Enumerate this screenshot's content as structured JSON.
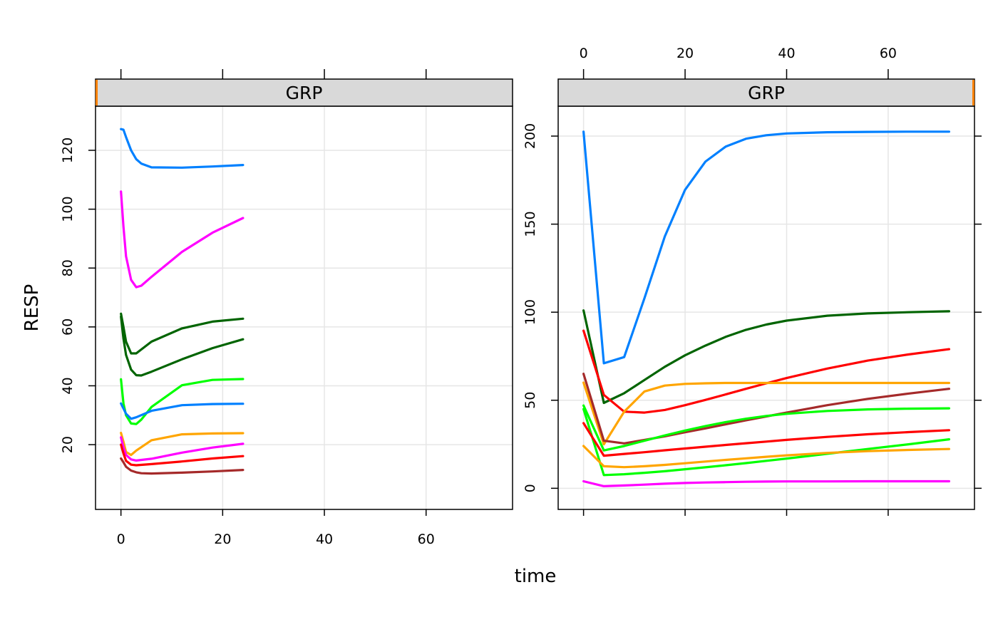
{
  "chart_data": {
    "type": "line",
    "xlabel": "time",
    "ylabel": "RESP",
    "xlim": [
      -5,
      77
    ],
    "grid": true,
    "x_ticks": [
      0,
      20,
      40,
      60
    ],
    "panels": [
      {
        "strip_label": "GRP",
        "strip_marker": "left",
        "ylim": [
          -2,
          135
        ],
        "y_ticks": [
          20,
          40,
          60,
          80,
          100,
          120
        ],
        "series": [
          {
            "color": "#0080ff",
            "x": [
              0,
              0.5,
              1,
              2,
              3,
              4,
              6,
              12,
              18,
              24
            ],
            "y": [
              127.2,
              127,
              124.5,
              120,
              117,
              115.5,
              114.2,
              114.1,
              114.5,
              115
            ]
          },
          {
            "color": "#ff00ff",
            "x": [
              0,
              0.5,
              1,
              2,
              3,
              4,
              6,
              12,
              18,
              24
            ],
            "y": [
              106,
              94,
              84,
              76,
              73.5,
              74,
              77,
              85.5,
              92,
              97
            ]
          },
          {
            "color": "#006400",
            "x": [
              0,
              0.5,
              1,
              2,
              3,
              6,
              12,
              18,
              24
            ],
            "y": [
              64.5,
              60,
              55,
              51,
              51,
              55,
              59.5,
              61.8,
              62.8
            ]
          },
          {
            "color": "#006400",
            "x": [
              0,
              0.5,
              1,
              2,
              3,
              4,
              6,
              12,
              18,
              24
            ],
            "y": [
              63.5,
              56,
              50.5,
              45.5,
              43.6,
              43.5,
              44.8,
              49,
              52.8,
              55.8
            ]
          },
          {
            "color": "#00ff00",
            "x": [
              0,
              0.5,
              1,
              2,
              3,
              4,
              6,
              12,
              18,
              24
            ],
            "y": [
              42.2,
              34,
              30,
              27.2,
              27,
              28.5,
              32.8,
              40.2,
              42,
              42.3
            ]
          },
          {
            "color": "#0080ff",
            "x": [
              0,
              1,
              2,
              3,
              6,
              12,
              18,
              24
            ],
            "y": [
              34,
              30.5,
              28.8,
              29.3,
              31.5,
              33.4,
              33.8,
              33.9
            ]
          },
          {
            "color": "#ffa500",
            "x": [
              0,
              0.5,
              1,
              2,
              3,
              6,
              12,
              18,
              24
            ],
            "y": [
              24,
              21,
              17.5,
              16.5,
              18,
              21.5,
              23.5,
              23.8,
              23.9
            ]
          },
          {
            "color": "#ff00ff",
            "x": [
              0,
              0.5,
              1,
              2,
              3,
              6,
              12,
              18,
              24
            ],
            "y": [
              22.5,
              19,
              16.5,
              15,
              14.6,
              15.2,
              17.3,
              19,
              20.3
            ]
          },
          {
            "color": "#ff0000",
            "x": [
              0,
              0.5,
              1,
              2,
              3,
              6,
              12,
              18,
              24
            ],
            "y": [
              20,
              17,
              14.5,
              13.2,
              13,
              13.4,
              14.3,
              15.3,
              16.1
            ]
          },
          {
            "color": "#a52a2a",
            "x": [
              0,
              0.5,
              1,
              2,
              3,
              4,
              6,
              12,
              18,
              24
            ],
            "y": [
              15.3,
              14,
              12.5,
              11.2,
              10.6,
              10.3,
              10.2,
              10.5,
              10.9,
              11.4
            ]
          }
        ]
      },
      {
        "strip_label": "GRP",
        "strip_marker": "right",
        "ylim": [
          -12,
          217
        ],
        "y_ticks": [
          0,
          50,
          100,
          150,
          200
        ],
        "series": [
          {
            "color": "#0080ff",
            "x": [
              0,
              4,
              8,
              12,
              16,
              20,
              24,
              28,
              32,
              36,
              40,
              48,
              56,
              64,
              72
            ],
            "y": [
              202.5,
              71,
              74.5,
              108,
              143,
              169.5,
              185.5,
              194,
              198.5,
              200.5,
              201.5,
              202.2,
              202.4,
              202.5,
              202.5
            ]
          },
          {
            "color": "#006400",
            "x": [
              0,
              4,
              8,
              12,
              16,
              20,
              24,
              28,
              32,
              36,
              40,
              48,
              56,
              64,
              72
            ],
            "y": [
              101,
              48.5,
              54,
              61.5,
              69,
              75.5,
              81,
              86,
              90,
              93,
              95.2,
              98,
              99.3,
              100,
              100.5
            ]
          },
          {
            "color": "#ff0000",
            "x": [
              0,
              4,
              8,
              12,
              16,
              20,
              24,
              28,
              32,
              36,
              40,
              48,
              56,
              64,
              72
            ],
            "y": [
              89.5,
              53,
              43.5,
              43,
              44.5,
              47.2,
              50.2,
              53.3,
              56.5,
              59.6,
              62.6,
              68,
              72.5,
              76,
              79
            ]
          },
          {
            "color": "#ffa500",
            "x": [
              0,
              4,
              8,
              12,
              16,
              20,
              24,
              28,
              32,
              36,
              40,
              48,
              56,
              64,
              72
            ],
            "y": [
              60,
              25,
              43.5,
              55,
              58.3,
              59.3,
              59.6,
              59.8,
              59.8,
              59.8,
              59.8,
              59.8,
              59.8,
              59.8,
              59.8
            ]
          },
          {
            "color": "#a52a2a",
            "x": [
              0,
              4,
              8,
              12,
              16,
              20,
              24,
              28,
              32,
              36,
              40,
              48,
              56,
              64,
              72
            ],
            "y": [
              65,
              27,
              25.5,
              27.5,
              29.5,
              31.8,
              34,
              36.3,
              38.6,
              40.8,
              43,
              47.2,
              50.8,
              53.8,
              56.5
            ]
          },
          {
            "color": "#00ff00",
            "x": [
              0,
              4,
              8,
              12,
              16,
              20,
              24,
              28,
              32,
              36,
              40,
              48,
              56,
              64,
              72
            ],
            "y": [
              47,
              21.5,
              24,
              27,
              30,
              32.8,
              35.3,
              37.6,
              39.5,
              41.1,
              42.3,
              43.9,
              44.8,
              45.2,
              45.4
            ]
          },
          {
            "color": "#00ff00",
            "x": [
              0,
              4,
              8,
              12,
              16,
              20,
              24,
              28,
              32,
              36,
              40,
              48,
              56,
              64,
              72
            ],
            "y": [
              45,
              7.5,
              8,
              8.8,
              9.7,
              10.8,
              11.9,
              13.1,
              14.3,
              15.6,
              16.9,
              19.6,
              22.3,
              25,
              27.8
            ]
          },
          {
            "color": "#ff0000",
            "x": [
              0,
              4,
              8,
              12,
              16,
              20,
              24,
              28,
              32,
              36,
              40,
              48,
              56,
              64,
              72
            ],
            "y": [
              37,
              18.5,
              19.5,
              20.5,
              21.6,
              22.6,
              23.6,
              24.6,
              25.6,
              26.5,
              27.5,
              29.2,
              30.7,
              31.9,
              33
            ]
          },
          {
            "color": "#ffa500",
            "x": [
              0,
              4,
              8,
              12,
              16,
              20,
              24,
              28,
              32,
              36,
              40,
              48,
              56,
              64,
              72
            ],
            "y": [
              24,
              12.5,
              12,
              12.5,
              13.3,
              14.2,
              15.2,
              16.1,
              17,
              17.9,
              18.7,
              20.1,
              21.1,
              21.8,
              22.3
            ]
          },
          {
            "color": "#ff00ff",
            "x": [
              0,
              4,
              8,
              12,
              16,
              20,
              24,
              28,
              32,
              36,
              40,
              48,
              56,
              64,
              72
            ],
            "y": [
              4,
              1.2,
              1.6,
              2.1,
              2.6,
              3,
              3.3,
              3.5,
              3.7,
              3.8,
              3.9,
              3.9,
              4,
              4,
              4
            ]
          }
        ]
      }
    ]
  },
  "colors": {
    "strip_bg": "#d9d9d9",
    "strip_marker": "#ff8000",
    "grid": "#e6e6e6",
    "frame": "#000000"
  }
}
